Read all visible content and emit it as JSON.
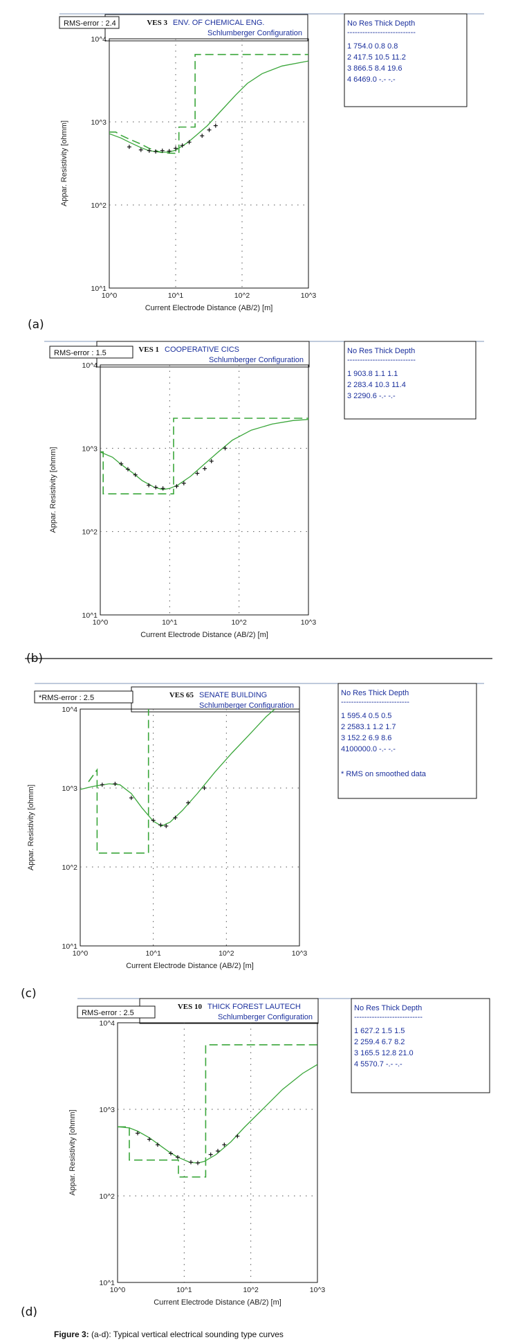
{
  "caption": {
    "label": "Figure 3:",
    "text": " (a-d): Typical vertical electrical sounding type curves"
  },
  "chart_data": [
    {
      "type": "line",
      "panel_label": "(a)",
      "rms_error": "RMS-error :  2.4",
      "ves": "VES 3",
      "site": "ENV. OF CHEMICAL ENG.",
      "config": "Schlumberger Configuration",
      "xlabel": "Current Electrode Distance (AB/2) [m]",
      "ylabel": "Appar. Resistivity [ohmm]",
      "x_scale": "log",
      "y_scale": "log",
      "xlim": [
        1,
        1000
      ],
      "ylim": [
        10,
        10000
      ],
      "x_ticks": [
        "10^0",
        "10^1",
        "10^2",
        "10^3"
      ],
      "y_ticks": [
        "10^4",
        "10^3",
        "10^2",
        "10^1"
      ],
      "grid": "dotted",
      "table": {
        "header": "No    Res   Thick  Depth",
        "rule": "---------------------------",
        "rows": [
          "1  754.0    0.8     0.8",
          "2  417.5   10.5    11.2",
          "3  866.5    8.4    19.6",
          "4  6469.0   -.-     -.-"
        ]
      },
      "measured": [
        [
          2,
          500
        ],
        [
          3,
          460
        ],
        [
          4,
          450
        ],
        [
          5,
          440
        ],
        [
          6.3,
          450
        ],
        [
          8,
          445
        ],
        [
          10,
          480
        ],
        [
          12.6,
          520
        ],
        [
          16,
          570
        ],
        [
          25,
          680
        ],
        [
          32,
          800
        ],
        [
          40,
          900
        ]
      ],
      "model_curve": [
        [
          1,
          720
        ],
        [
          1.5,
          640
        ],
        [
          2,
          570
        ],
        [
          3,
          490
        ],
        [
          4,
          450
        ],
        [
          6,
          430
        ],
        [
          8,
          435
        ],
        [
          10,
          455
        ],
        [
          12,
          500
        ],
        [
          15,
          560
        ],
        [
          20,
          680
        ],
        [
          30,
          900
        ],
        [
          50,
          1400
        ],
        [
          80,
          2100
        ],
        [
          120,
          2900
        ],
        [
          200,
          3800
        ],
        [
          400,
          4700
        ],
        [
          1000,
          5400
        ]
      ],
      "layer_model": [
        [
          1,
          754
        ],
        [
          1.25,
          754
        ],
        [
          1.5,
          690
        ],
        [
          2,
          620
        ],
        [
          3,
          540
        ],
        [
          4,
          480
        ],
        [
          6,
          430
        ],
        [
          8,
          420
        ],
        [
          10,
          417.5
        ],
        [
          11.2,
          417.5
        ],
        [
          11.2,
          866.5
        ],
        [
          19.6,
          866.5
        ],
        [
          19.6,
          6469
        ],
        [
          1000,
          6469
        ]
      ]
    },
    {
      "type": "line",
      "panel_label": "(b)",
      "rms_error": "RMS-error :  1.5",
      "ves": "VES 1",
      "site": "COOPERATIVE CICS",
      "config": "Schlumberger Configuration",
      "xlabel": "Current Electrode Distance (AB/2) [m]",
      "ylabel": "Appar. Resistivity [ohmm]",
      "x_scale": "log",
      "y_scale": "log",
      "xlim": [
        1,
        1000
      ],
      "ylim": [
        10,
        10000
      ],
      "x_ticks": [
        "10^0",
        "10^1",
        "10^2",
        "10^3"
      ],
      "y_ticks": [
        "10^4",
        "10^3",
        "10^2",
        "10^1"
      ],
      "grid": "dotted",
      "table": {
        "header": "No    Res   Thick  Depth",
        "rule": "---------------------------",
        "rows": [
          "1  903.8    1.1     1.1",
          "2  283.4   10.3    11.4",
          "3  2290.6   -.-     -.-"
        ]
      },
      "measured": [
        [
          2,
          650
        ],
        [
          2.5,
          560
        ],
        [
          3.2,
          480
        ],
        [
          5,
          360
        ],
        [
          6.3,
          340
        ],
        [
          8,
          330
        ],
        [
          12.6,
          350
        ],
        [
          16,
          380
        ],
        [
          25,
          500
        ],
        [
          32,
          570
        ],
        [
          40,
          700
        ],
        [
          63,
          1000
        ]
      ],
      "model_curve": [
        [
          1,
          900
        ],
        [
          1.5,
          780
        ],
        [
          2,
          640
        ],
        [
          3,
          500
        ],
        [
          4,
          410
        ],
        [
          6,
          340
        ],
        [
          8,
          320
        ],
        [
          10,
          330
        ],
        [
          13,
          360
        ],
        [
          20,
          460
        ],
        [
          30,
          620
        ],
        [
          50,
          900
        ],
        [
          80,
          1250
        ],
        [
          150,
          1650
        ],
        [
          300,
          1950
        ],
        [
          600,
          2150
        ],
        [
          1000,
          2220
        ]
      ],
      "layer_model": [
        [
          1,
          903.8
        ],
        [
          1.1,
          903.8
        ],
        [
          1.1,
          283.4
        ],
        [
          11.4,
          283.4
        ],
        [
          11.4,
          2290.6
        ],
        [
          1000,
          2290.6
        ]
      ]
    },
    {
      "type": "line",
      "panel_label": "(c)",
      "rms_error": "*RMS-error :  2.5",
      "ves": "VES 65",
      "site": "SENATE BUILDING",
      "config": "Schlumberger Configuration",
      "xlabel": "Current Electrode Distance (AB/2) [m]",
      "ylabel": "Appar. Resistivity [ohmm]",
      "x_scale": "log",
      "y_scale": "log",
      "xlim": [
        1,
        1000
      ],
      "ylim": [
        10,
        10000
      ],
      "x_ticks": [
        "10^0",
        "10^1",
        "10^2",
        "10^3"
      ],
      "y_ticks": [
        "10^4",
        "10^3",
        "10^2",
        "10^1"
      ],
      "grid": "dotted",
      "table": {
        "header": "No    Res   Thick  Depth",
        "rule": "---------------------------",
        "rows": [
          "1  595.4    0.5     0.5",
          "2  2583.1    1.2     1.7",
          "3  152.2    6.9     8.6",
          "4100000.0   -.-     -.-"
        ],
        "note": "* RMS on smoothed data"
      },
      "measured": [
        [
          2,
          1100
        ],
        [
          3,
          1130
        ],
        [
          5,
          750
        ],
        [
          10,
          390
        ],
        [
          12.6,
          340
        ],
        [
          15,
          330
        ],
        [
          20,
          420
        ],
        [
          30,
          650
        ],
        [
          50,
          1000
        ]
      ],
      "model_curve": [
        [
          1,
          960
        ],
        [
          1.5,
          1050
        ],
        [
          2.5,
          1130
        ],
        [
          3.5,
          1100
        ],
        [
          5,
          850
        ],
        [
          7,
          560
        ],
        [
          10,
          380
        ],
        [
          13,
          330
        ],
        [
          17,
          370
        ],
        [
          25,
          520
        ],
        [
          40,
          850
        ],
        [
          70,
          1600
        ],
        [
          120,
          2800
        ],
        [
          200,
          4600
        ],
        [
          350,
          8000
        ],
        [
          460,
          10000
        ]
      ],
      "layer_model": [
        [
          1.3,
          1200
        ],
        [
          1.7,
          1700
        ],
        [
          1.7,
          150
        ],
        [
          8.6,
          150
        ],
        [
          8.6,
          10000
        ]
      ]
    },
    {
      "type": "line",
      "panel_label": "(d)",
      "rms_error": "RMS-error :  2.5",
      "ves": "VES 10",
      "site": "THICK FOREST LAUTECH",
      "config": "Schlumberger Configuration",
      "xlabel": "Current Electrode Distance (AB/2) [m]",
      "ylabel": "Appar. Resistivity [ohmm]",
      "x_scale": "log",
      "y_scale": "log",
      "xlim": [
        1,
        1000
      ],
      "ylim": [
        10,
        10000
      ],
      "x_ticks": [
        "10^0",
        "10^1",
        "10^2",
        "10^3"
      ],
      "y_ticks": [
        "10^4",
        "10^3",
        "10^2",
        "10^1"
      ],
      "grid": "dotted",
      "table": {
        "header": "No    Res   Thick  Depth",
        "rule": "---------------------------",
        "rows": [
          "1  627.2    1.5     1.5",
          "2  259.4    6.7     8.2",
          "3  165.5   12.8    21.0",
          "4  5570.7   -.-     -.-"
        ]
      },
      "measured": [
        [
          2,
          530
        ],
        [
          3,
          450
        ],
        [
          4,
          390
        ],
        [
          6.3,
          310
        ],
        [
          8,
          280
        ],
        [
          12.6,
          245
        ],
        [
          16,
          240
        ],
        [
          25,
          300
        ],
        [
          32,
          330
        ],
        [
          40,
          390
        ],
        [
          63,
          490
        ]
      ],
      "model_curve": [
        [
          1,
          630
        ],
        [
          1.5,
          610
        ],
        [
          2,
          560
        ],
        [
          3,
          470
        ],
        [
          4,
          400
        ],
        [
          6,
          320
        ],
        [
          8,
          280
        ],
        [
          12,
          245
        ],
        [
          16,
          240
        ],
        [
          20,
          250
        ],
        [
          30,
          300
        ],
        [
          50,
          420
        ],
        [
          80,
          620
        ],
        [
          150,
          1000
        ],
        [
          300,
          1700
        ],
        [
          600,
          2600
        ],
        [
          1000,
          3300
        ]
      ],
      "layer_model": [
        [
          1,
          627.2
        ],
        [
          1.5,
          627.2
        ],
        [
          1.5,
          259.4
        ],
        [
          8.2,
          259.4
        ],
        [
          8.2,
          165.5
        ],
        [
          21,
          165.5
        ],
        [
          21,
          5570.7
        ],
        [
          1000,
          5570.7
        ]
      ]
    }
  ]
}
